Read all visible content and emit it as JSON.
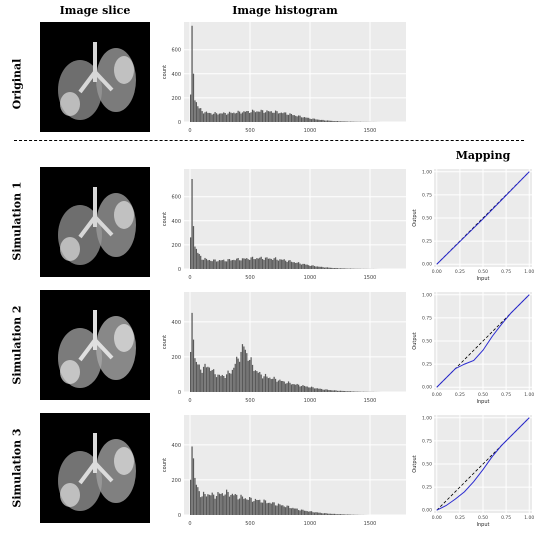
{
  "headers": {
    "image_slice": "Image slice",
    "image_histogram": "Image histogram",
    "mapping": "Mapping"
  },
  "rows": [
    {
      "label": "Original"
    },
    {
      "label": "Simulation 1"
    },
    {
      "label": "Simulation 2"
    },
    {
      "label": "Simulation 3"
    }
  ],
  "colors": {
    "panel_bg": "#ebebeb",
    "grid": "#ffffff",
    "bar": "#595959",
    "mapping_line": "#2b2bd0",
    "identity_line": "#000000"
  },
  "chart_data": [
    {
      "type": "bar",
      "panel": "Original",
      "ylabel": "count",
      "xticks": [
        0,
        500,
        1000,
        1500
      ],
      "yticks": [
        0,
        200,
        400,
        600
      ],
      "xlim": [
        -50,
        1800
      ],
      "ylim": [
        0,
        830
      ],
      "series": [
        {
          "values": [
            [
              0,
              120
            ],
            [
              10,
              300
            ],
            [
              20,
              780
            ],
            [
              30,
              400
            ],
            [
              40,
              200
            ],
            [
              60,
              150
            ],
            [
              80,
              110
            ],
            [
              100,
              90
            ],
            [
              150,
              75
            ],
            [
              200,
              70
            ],
            [
              300,
              72
            ],
            [
              400,
              80
            ],
            [
              500,
              88
            ],
            [
              600,
              90
            ],
            [
              700,
              85
            ],
            [
              800,
              72
            ],
            [
              900,
              50
            ],
            [
              1000,
              30
            ],
            [
              1100,
              16
            ],
            [
              1200,
              8
            ],
            [
              1300,
              4
            ],
            [
              1400,
              2
            ],
            [
              1500,
              1
            ],
            [
              1600,
              0
            ]
          ]
        }
      ]
    },
    {
      "type": "bar",
      "panel": "Simulation 1",
      "ylabel": "count",
      "xticks": [
        0,
        500,
        1000,
        1500
      ],
      "yticks": [
        0,
        200,
        400,
        600
      ],
      "xlim": [
        -50,
        1800
      ],
      "ylim": [
        0,
        830
      ],
      "series": [
        {
          "values": [
            [
              0,
              120
            ],
            [
              10,
              300
            ],
            [
              20,
              780
            ],
            [
              30,
              400
            ],
            [
              40,
              200
            ],
            [
              60,
              150
            ],
            [
              80,
              110
            ],
            [
              100,
              90
            ],
            [
              150,
              75
            ],
            [
              200,
              70
            ],
            [
              300,
              72
            ],
            [
              400,
              80
            ],
            [
              500,
              88
            ],
            [
              600,
              90
            ],
            [
              700,
              85
            ],
            [
              800,
              72
            ],
            [
              900,
              50
            ],
            [
              1000,
              30
            ],
            [
              1100,
              16
            ],
            [
              1200,
              8
            ],
            [
              1300,
              4
            ],
            [
              1400,
              2
            ],
            [
              1500,
              1
            ],
            [
              1600,
              0
            ]
          ]
        }
      ]
    },
    {
      "type": "bar",
      "panel": "Simulation 2",
      "ylabel": "count",
      "xticks": [
        0,
        500,
        1000,
        1500
      ],
      "yticks": [
        0,
        200,
        400
      ],
      "xlim": [
        -50,
        1800
      ],
      "ylim": [
        0,
        570
      ],
      "series": [
        {
          "values": [
            [
              0,
              100
            ],
            [
              10,
              260
            ],
            [
              20,
              540
            ],
            [
              30,
              340
            ],
            [
              40,
              190
            ],
            [
              60,
              160
            ],
            [
              80,
              140
            ],
            [
              100,
              130
            ],
            [
              150,
              150
            ],
            [
              200,
              110
            ],
            [
              250,
              90
            ],
            [
              300,
              95
            ],
            [
              350,
              120
            ],
            [
              400,
              190
            ],
            [
              450,
              260
            ],
            [
              500,
              180
            ],
            [
              550,
              120
            ],
            [
              600,
              95
            ],
            [
              700,
              75
            ],
            [
              800,
              55
            ],
            [
              900,
              40
            ],
            [
              1000,
              28
            ],
            [
              1100,
              16
            ],
            [
              1200,
              9
            ],
            [
              1300,
              5
            ],
            [
              1400,
              2
            ],
            [
              1500,
              1
            ],
            [
              1600,
              0
            ]
          ]
        }
      ]
    },
    {
      "type": "bar",
      "panel": "Simulation 3",
      "ylabel": "count",
      "xticks": [
        0,
        500,
        1000,
        1500
      ],
      "yticks": [
        0,
        200,
        400
      ],
      "xlim": [
        -50,
        1800
      ],
      "ylim": [
        0,
        570
      ],
      "series": [
        {
          "values": [
            [
              0,
              100
            ],
            [
              10,
              260
            ],
            [
              20,
              520
            ],
            [
              30,
              330
            ],
            [
              40,
              200
            ],
            [
              60,
              160
            ],
            [
              80,
              130
            ],
            [
              100,
              110
            ],
            [
              150,
              120
            ],
            [
              200,
              110
            ],
            [
              250,
              120
            ],
            [
              300,
              125
            ],
            [
              350,
              118
            ],
            [
              400,
              105
            ],
            [
              500,
              90
            ],
            [
              600,
              80
            ],
            [
              700,
              65
            ],
            [
              800,
              50
            ],
            [
              900,
              32
            ],
            [
              1000,
              20
            ],
            [
              1100,
              11
            ],
            [
              1200,
              6
            ],
            [
              1300,
              3
            ],
            [
              1400,
              1
            ],
            [
              1500,
              0
            ]
          ]
        }
      ]
    },
    {
      "type": "line",
      "panel": "Simulation 1",
      "xlabel": "Input",
      "ylabel": "Output",
      "xticks": [
        0,
        0.25,
        0.5,
        0.75,
        1.0
      ],
      "yticks": [
        0,
        0.25,
        0.5,
        0.75,
        1.0
      ],
      "xlim": [
        -0.03,
        1.03
      ],
      "ylim": [
        -0.03,
        1.03
      ],
      "series": [
        {
          "x": [
            0,
            0.25,
            0.5,
            0.75,
            1.0
          ],
          "y": [
            0,
            0.245,
            0.49,
            0.745,
            1.0
          ]
        }
      ]
    },
    {
      "type": "line",
      "panel": "Simulation 2",
      "xlabel": "Input",
      "ylabel": "Output",
      "xticks": [
        0,
        0.25,
        0.5,
        0.75,
        1.0
      ],
      "yticks": [
        0,
        0.25,
        0.5,
        0.75,
        1.0
      ],
      "xlim": [
        -0.03,
        1.03
      ],
      "ylim": [
        -0.03,
        1.03
      ],
      "series": [
        {
          "x": [
            0,
            0.1,
            0.2,
            0.3,
            0.4,
            0.5,
            0.6,
            0.7,
            0.8,
            0.9,
            1.0
          ],
          "y": [
            0,
            0.1,
            0.2,
            0.25,
            0.29,
            0.4,
            0.55,
            0.68,
            0.8,
            0.9,
            1.0
          ]
        }
      ]
    },
    {
      "type": "line",
      "panel": "Simulation 3",
      "xlabel": "Input",
      "ylabel": "Output",
      "xticks": [
        0,
        0.25,
        0.5,
        0.75,
        1.0
      ],
      "yticks": [
        0,
        0.25,
        0.5,
        0.75,
        1.0
      ],
      "xlim": [
        -0.03,
        1.03
      ],
      "ylim": [
        -0.03,
        1.03
      ],
      "series": [
        {
          "x": [
            0,
            0.1,
            0.2,
            0.3,
            0.4,
            0.5,
            0.6,
            0.7,
            0.8,
            0.9,
            1.0
          ],
          "y": [
            0,
            0.05,
            0.12,
            0.2,
            0.31,
            0.44,
            0.58,
            0.7,
            0.8,
            0.9,
            1.0
          ]
        }
      ]
    }
  ]
}
